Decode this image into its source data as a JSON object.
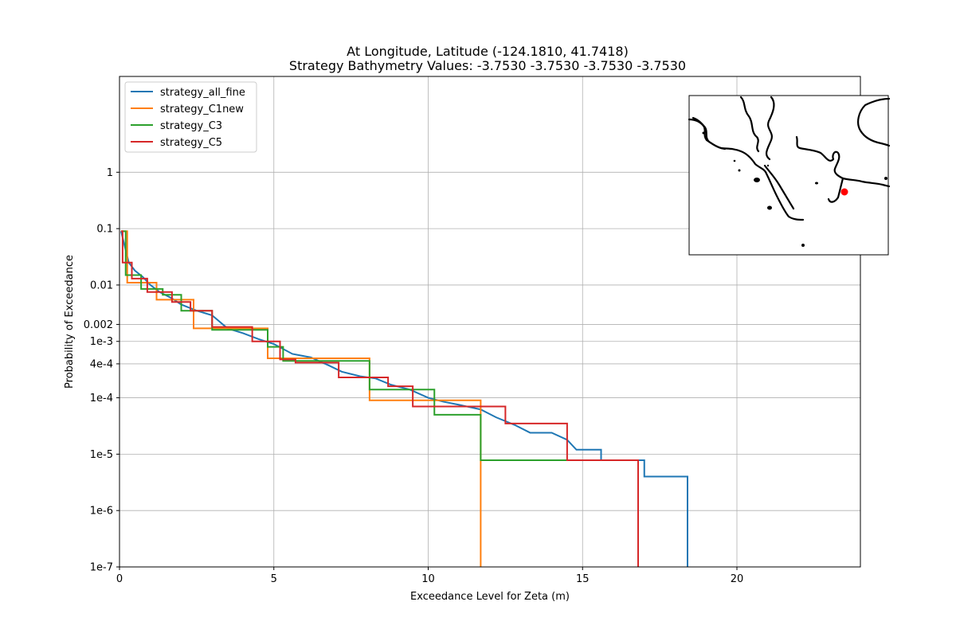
{
  "figure": {
    "title_line1": "At Longitude, Latitude (-124.1810,  41.7418)",
    "title_line2": "Strategy Bathymetry Values:   -3.7530   -3.7530   -3.7530   -3.7530"
  },
  "chart_data": {
    "type": "line",
    "xlabel": "Exceedance Level for Zeta (m)",
    "ylabel": "Probability of Exceedance",
    "xlim": [
      0,
      24
    ],
    "ylim": [
      1e-07,
      50
    ],
    "yscale": "log",
    "grid": true,
    "legend_position": "upper-left",
    "x_ticks": [
      {
        "value": 0,
        "label": "0"
      },
      {
        "value": 5,
        "label": "5"
      },
      {
        "value": 10,
        "label": "10"
      },
      {
        "value": 15,
        "label": "15"
      },
      {
        "value": 20,
        "label": "20"
      }
    ],
    "y_ticks": [
      {
        "value": 1,
        "label": "1"
      },
      {
        "value": 0.1,
        "label": "0.1"
      },
      {
        "value": 0.01,
        "label": "0.01"
      },
      {
        "value": 0.002,
        "label": "0.002"
      },
      {
        "value": 0.001,
        "label": "1e-3"
      },
      {
        "value": 0.0004,
        "label": "4e-4"
      },
      {
        "value": 0.0001,
        "label": "1e-4"
      },
      {
        "value": 1e-05,
        "label": "1e-5"
      },
      {
        "value": 1e-06,
        "label": "1e-6"
      },
      {
        "value": 1e-07,
        "label": "1e-7"
      }
    ],
    "series": [
      {
        "name": "strategy_all_fine",
        "color": "#1f77b4",
        "points": [
          [
            0.05,
            0.09
          ],
          [
            0.3,
            0.025
          ],
          [
            0.5,
            0.018
          ],
          [
            0.75,
            0.014
          ],
          [
            1.0,
            0.01
          ],
          [
            1.3,
            0.0075
          ],
          [
            1.7,
            0.0058
          ],
          [
            2.0,
            0.0045
          ],
          [
            2.5,
            0.0035
          ],
          [
            3.0,
            0.0029
          ],
          [
            3.5,
            0.0017
          ],
          [
            4.0,
            0.0014
          ],
          [
            4.5,
            0.0011
          ],
          [
            5.0,
            0.0009
          ],
          [
            5.6,
            0.0006
          ],
          [
            6.2,
            0.00052
          ],
          [
            6.8,
            0.00037
          ],
          [
            7.2,
            0.00029
          ],
          [
            7.8,
            0.00024
          ],
          [
            8.3,
            0.00022
          ],
          [
            8.8,
            0.00017
          ],
          [
            9.4,
            0.00014
          ],
          [
            10.0,
            0.0001
          ],
          [
            10.5,
            8.5e-05
          ],
          [
            11.0,
            7.5e-05
          ],
          [
            11.7,
            6.2e-05
          ],
          [
            12.2,
            4.5e-05
          ],
          [
            12.8,
            3.3e-05
          ],
          [
            13.3,
            2.4e-05
          ],
          [
            14.0,
            2.4e-05
          ],
          [
            14.5,
            1.8e-05
          ],
          [
            14.8,
            1.2e-05
          ],
          [
            15.6,
            1.2e-05
          ],
          [
            15.6,
            7.8e-06
          ],
          [
            17.0,
            7.8e-06
          ],
          [
            17.0,
            4e-06
          ],
          [
            18.4,
            4e-06
          ],
          [
            18.4,
            1e-07
          ]
        ]
      },
      {
        "name": "strategy_C1new",
        "color": "#ff7f0e",
        "points": [
          [
            0.05,
            0.09
          ],
          [
            0.25,
            0.09
          ],
          [
            0.25,
            0.011
          ],
          [
            1.2,
            0.011
          ],
          [
            1.2,
            0.0055
          ],
          [
            2.4,
            0.0055
          ],
          [
            2.4,
            0.0017
          ],
          [
            4.8,
            0.0017
          ],
          [
            4.8,
            0.0005
          ],
          [
            8.1,
            0.0005
          ],
          [
            8.1,
            9e-05
          ],
          [
            11.7,
            9e-05
          ],
          [
            11.7,
            1e-07
          ]
        ]
      },
      {
        "name": "strategy_C3",
        "color": "#2ca02c",
        "points": [
          [
            0.05,
            0.09
          ],
          [
            0.2,
            0.09
          ],
          [
            0.2,
            0.015
          ],
          [
            0.7,
            0.015
          ],
          [
            0.7,
            0.0085
          ],
          [
            1.4,
            0.0085
          ],
          [
            1.4,
            0.0067
          ],
          [
            2.0,
            0.0067
          ],
          [
            2.0,
            0.0035
          ],
          [
            3.0,
            0.0035
          ],
          [
            3.0,
            0.0016
          ],
          [
            4.8,
            0.0016
          ],
          [
            4.8,
            0.0008
          ],
          [
            5.3,
            0.0008
          ],
          [
            5.3,
            0.00045
          ],
          [
            8.1,
            0.00045
          ],
          [
            8.1,
            0.00014
          ],
          [
            10.2,
            0.00014
          ],
          [
            10.2,
            5e-05
          ],
          [
            11.7,
            5e-05
          ],
          [
            11.7,
            7.8e-06
          ],
          [
            16.8,
            7.8e-06
          ],
          [
            16.8,
            1e-07
          ]
        ]
      },
      {
        "name": "strategy_C5",
        "color": "#d62728",
        "points": [
          [
            0.05,
            0.09
          ],
          [
            0.1,
            0.09
          ],
          [
            0.1,
            0.025
          ],
          [
            0.4,
            0.025
          ],
          [
            0.4,
            0.013
          ],
          [
            0.9,
            0.013
          ],
          [
            0.9,
            0.0075
          ],
          [
            1.7,
            0.0075
          ],
          [
            1.7,
            0.005
          ],
          [
            2.3,
            0.005
          ],
          [
            2.3,
            0.0035
          ],
          [
            3.0,
            0.0035
          ],
          [
            3.0,
            0.0018
          ],
          [
            4.3,
            0.0018
          ],
          [
            4.3,
            0.001
          ],
          [
            5.2,
            0.001
          ],
          [
            5.2,
            0.00048
          ],
          [
            5.7,
            0.00048
          ],
          [
            5.7,
            0.00042
          ],
          [
            7.1,
            0.00042
          ],
          [
            7.1,
            0.00023
          ],
          [
            8.7,
            0.00023
          ],
          [
            8.7,
            0.00016
          ],
          [
            9.5,
            0.00016
          ],
          [
            9.5,
            7e-05
          ],
          [
            12.5,
            7e-05
          ],
          [
            12.5,
            3.5e-05
          ],
          [
            14.5,
            3.5e-05
          ],
          [
            14.5,
            7.8e-06
          ],
          [
            16.8,
            7.8e-06
          ],
          [
            16.8,
            1e-07
          ]
        ]
      }
    ],
    "inset": {
      "type": "map",
      "marker_color": "#ff0000"
    }
  }
}
